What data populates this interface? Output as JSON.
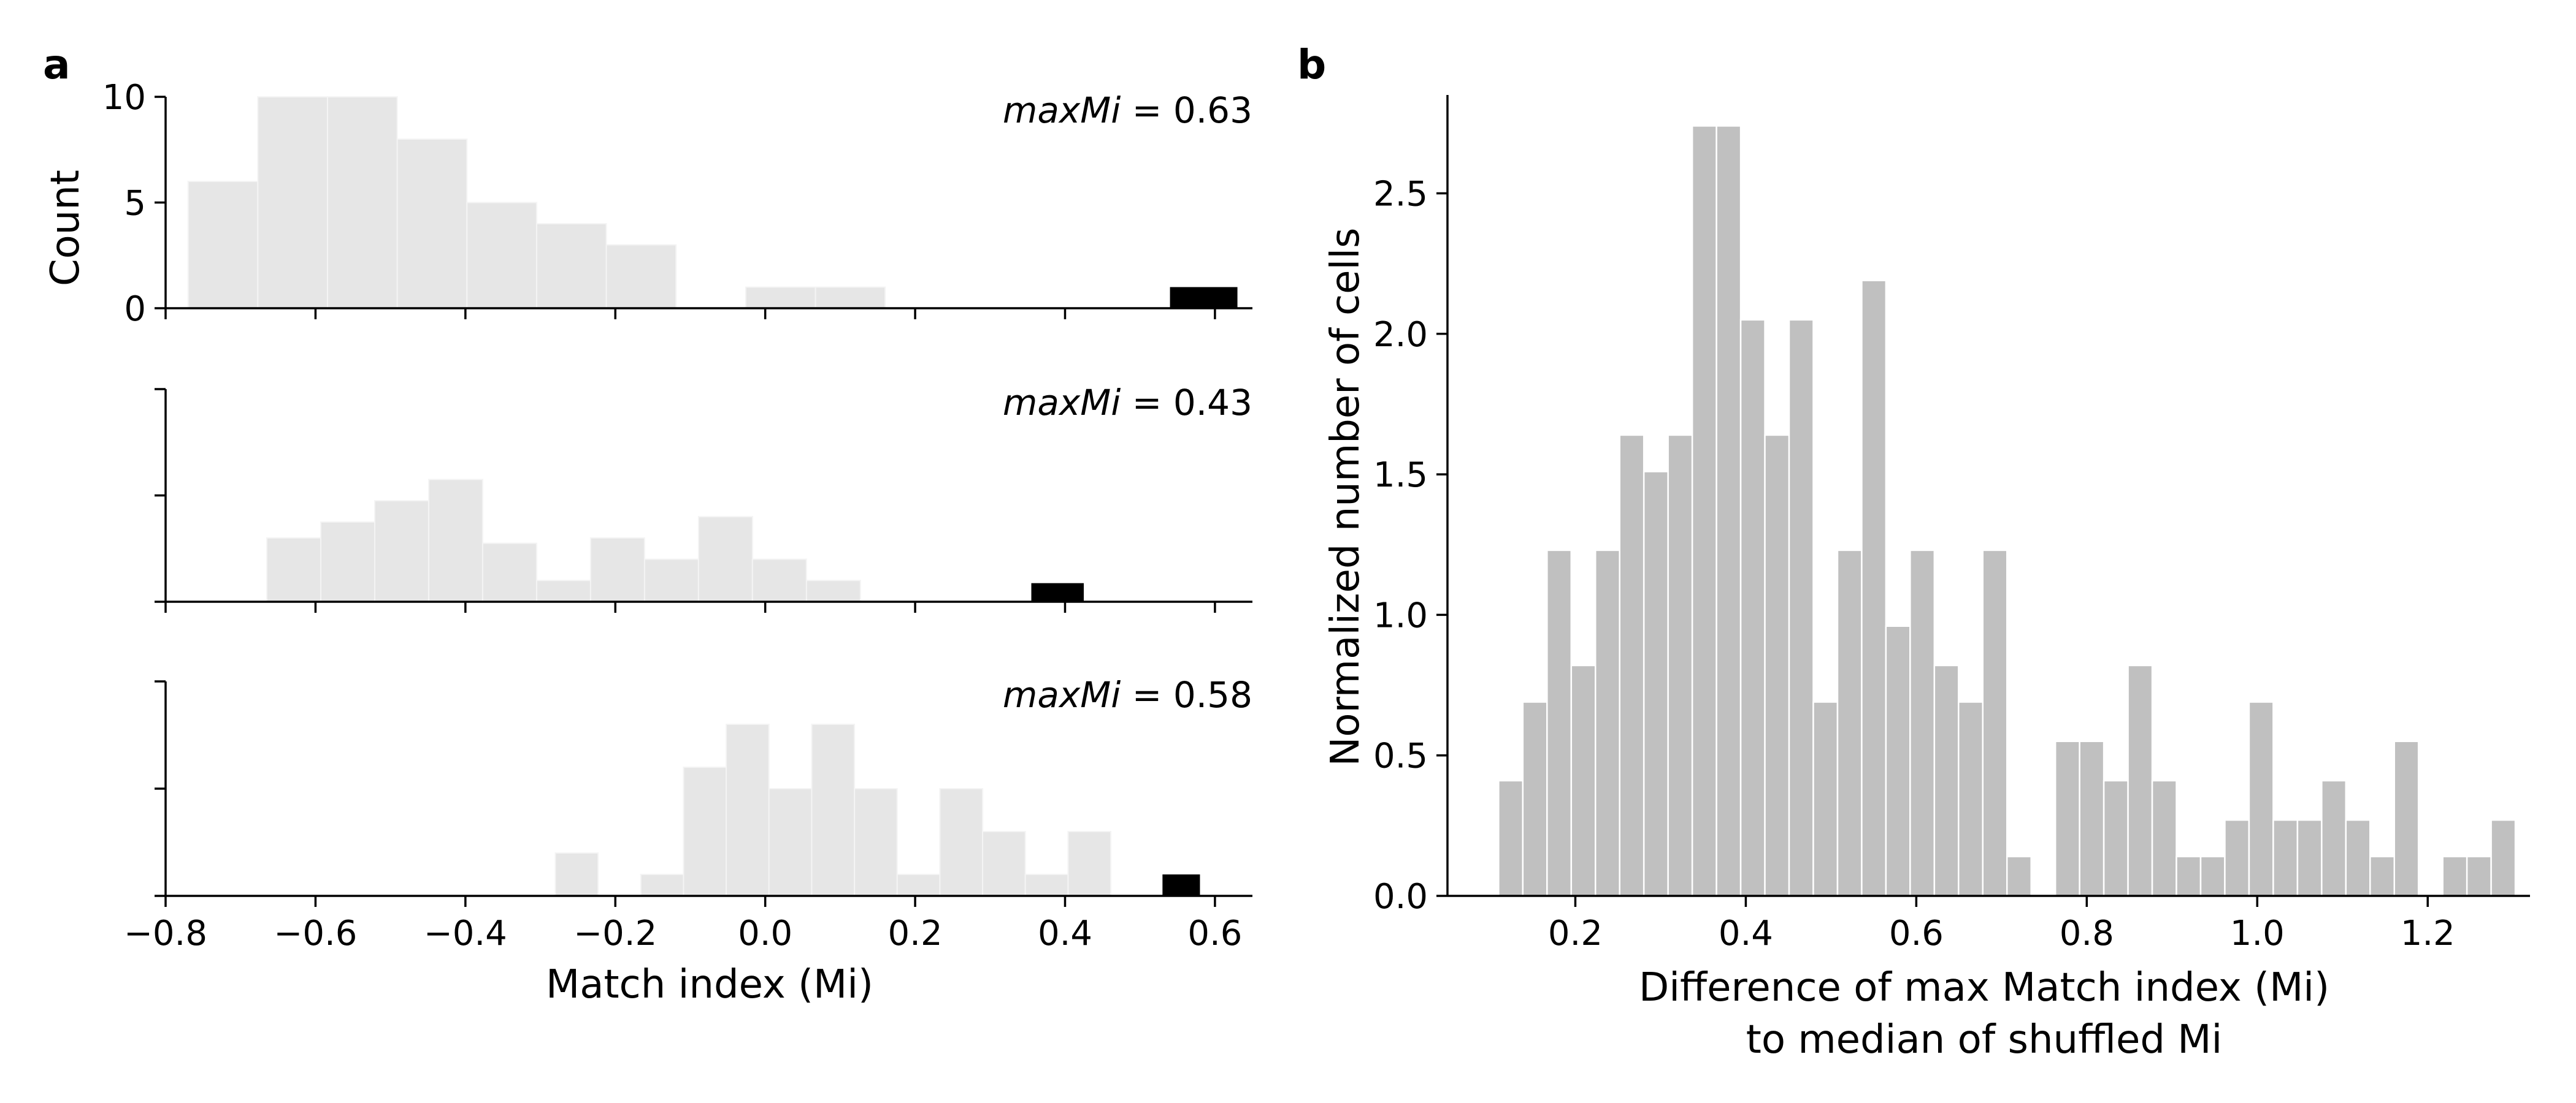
{
  "panel_labels": {
    "a": "a",
    "b": "b"
  },
  "colors": {
    "null_bars": "#e6e6e6",
    "observed_bar": "#000000",
    "panel_b_bars": "#c0c0c0"
  },
  "chart_data": [
    {
      "type": "bar",
      "panel": "a",
      "xlabel": "Match index (Mi)",
      "ylabel": "Count",
      "xlim": [
        -0.8,
        0.65
      ],
      "xticks": [
        -0.8,
        -0.6,
        -0.4,
        -0.2,
        0.0,
        0.2,
        0.4,
        0.6
      ],
      "xtick_labels": [
        "−0.8",
        "−0.6",
        "−0.4",
        "−0.2",
        "0.0",
        "0.2",
        "0.4",
        "0.6"
      ],
      "subplots": [
        {
          "ylim": [
            0,
            10
          ],
          "yticks": [
            0,
            5,
            10
          ],
          "ytick_labels": [
            "0",
            "5",
            "10"
          ],
          "annotation": {
            "prefix": "maxMi",
            "text": " = 0.63"
          },
          "bin_edges": [
            -0.77,
            -0.677,
            -0.584,
            -0.491,
            -0.398,
            -0.305,
            -0.212,
            -0.119,
            -0.026,
            0.067,
            0.16
          ],
          "counts": [
            6,
            10,
            10,
            8,
            5,
            4,
            3,
            0,
            1,
            1
          ],
          "observed": {
            "x": [
              0.54,
              0.63
            ],
            "count": 1
          }
        },
        {
          "ylim": [
            0,
            4
          ],
          "yticks": [
            0,
            2,
            4
          ],
          "ytick_labels": [
            "",
            "",
            ""
          ],
          "annotation": {
            "prefix": "maxMi",
            "text": " = 0.43"
          },
          "bin_edges": [
            -0.665,
            -0.593,
            -0.521,
            -0.449,
            -0.377,
            -0.305,
            -0.233,
            -0.161,
            -0.089,
            -0.017,
            0.055,
            0.127
          ],
          "counts": [
            1.2,
            1.5,
            1.9,
            2.3,
            1.1,
            0.4,
            1.2,
            0.8,
            1.6,
            0.8,
            0.4
          ],
          "observed": {
            "x": [
              0.355,
              0.425
            ],
            "count": 0.35
          }
        },
        {
          "ylim": [
            0,
            6
          ],
          "yticks": [
            0,
            3,
            6
          ],
          "ytick_labels": [
            "",
            "",
            ""
          ],
          "annotation": {
            "prefix": "maxMi",
            "text": " = 0.58"
          },
          "bin_edges": [
            -0.28,
            -0.223,
            -0.166,
            -0.109,
            -0.052,
            0.005,
            0.062,
            0.119,
            0.176,
            0.233,
            0.29,
            0.347,
            0.404,
            0.461
          ],
          "counts": [
            1.2,
            0,
            0.6,
            3.6,
            4.8,
            3,
            4.8,
            3,
            0.6,
            3,
            1.8,
            0.6,
            1.8
          ],
          "observed": {
            "x": [
              0.53,
              0.58
            ],
            "count": 0.6
          }
        }
      ]
    },
    {
      "type": "bar",
      "panel": "b",
      "xlabel": "Difference of max Match index (Mi)",
      "xlabel2": "to median of shuffled Mi",
      "ylabel": "Normalized number of cells",
      "xlim": [
        0.05,
        1.32
      ],
      "ylim": [
        0,
        2.85
      ],
      "xticks": [
        0.2,
        0.4,
        0.6,
        0.8,
        1.0,
        1.2
      ],
      "xtick_labels": [
        "0.2",
        "0.4",
        "0.6",
        "0.8",
        "1.0",
        "1.2"
      ],
      "yticks": [
        0.0,
        0.5,
        1.0,
        1.5,
        2.0,
        2.5
      ],
      "ytick_labels": [
        "0.0",
        "0.5",
        "1.0",
        "1.5",
        "2.0",
        "2.5"
      ],
      "bin_start": 0.11,
      "bin_width": 0.0284,
      "values": [
        0.41,
        0.69,
        1.23,
        0.82,
        1.23,
        1.64,
        1.51,
        1.64,
        2.74,
        2.74,
        2.05,
        1.64,
        2.05,
        0.69,
        1.23,
        2.19,
        0.96,
        1.23,
        0.82,
        0.69,
        1.23,
        0.14,
        0,
        0.55,
        0.55,
        0.41,
        0.82,
        0.41,
        0.14,
        0.14,
        0.27,
        0.69,
        0.27,
        0.27,
        0.41,
        0.27,
        0.14,
        0.55,
        0,
        0.14,
        0.14,
        0.27
      ]
    }
  ]
}
